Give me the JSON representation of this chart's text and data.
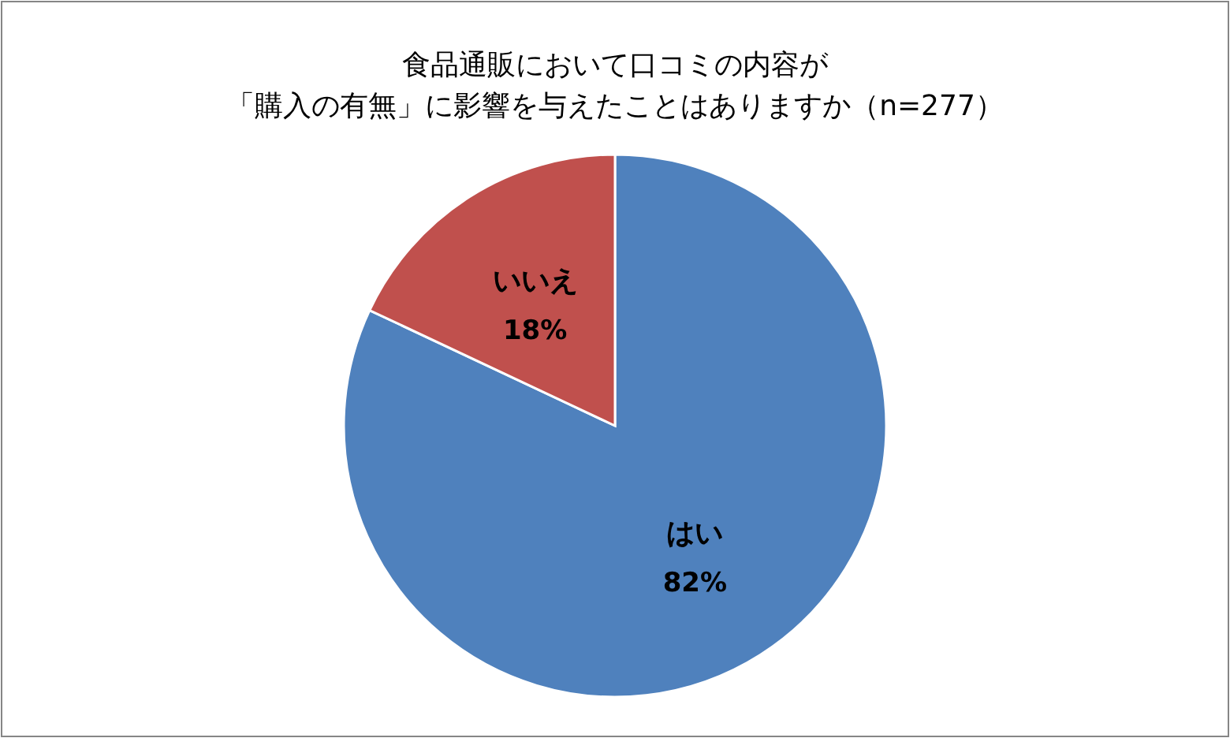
{
  "chart_data": {
    "type": "pie",
    "title": "食品通販において口コミの内容が",
    "subtitle": "「購入の有無」に影響を与えたことはありますか（n=277）",
    "categories": [
      "はい",
      "いいえ"
    ],
    "values": [
      82,
      18
    ],
    "colors": [
      "#4f81bd",
      "#c0504d"
    ],
    "value_labels": [
      "82%",
      "18%"
    ],
    "legend": false
  }
}
